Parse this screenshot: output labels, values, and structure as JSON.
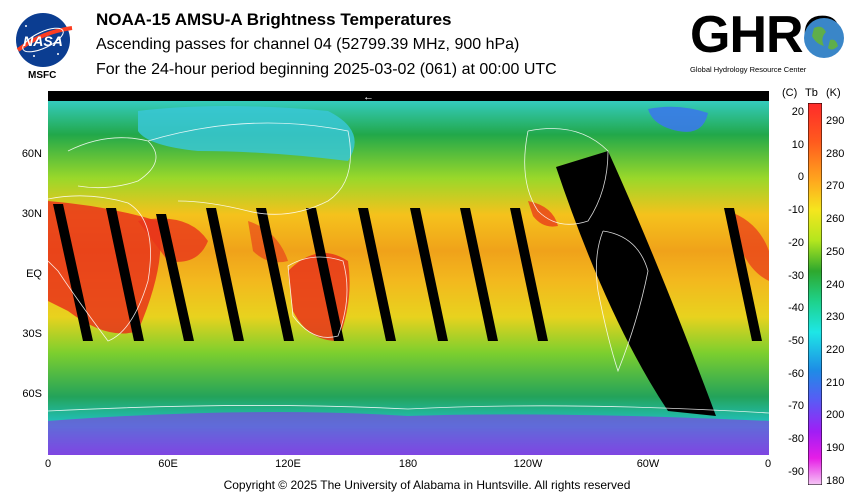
{
  "header": {
    "title": "NOAA-15 AMSU-A Brightness Temperatures",
    "subtitle1": "Ascending passes for channel 04 (52799.39 MHz, 900 hPa)",
    "subtitle2": "For the 24-hour period beginning 2025-03-02 (061) at 00:00 UTC"
  },
  "logos": {
    "nasa_text": "NASA",
    "msfc_text": "MSFC",
    "ghrc_text": "GHRC",
    "ghrc_subtitle": "Global Hydrology Resource Center"
  },
  "map": {
    "direction_arrow": "←",
    "lat_labels": [
      "60N",
      "30N",
      "EQ",
      "30S",
      "60S"
    ],
    "lon_labels": [
      "0",
      "60E",
      "120E",
      "180",
      "120W",
      "60W",
      "0"
    ]
  },
  "colorbar": {
    "units_c": "(C)",
    "units_tb": "Tb",
    "units_k": "(K)",
    "celsius_ticks": [
      "20",
      "10",
      "0",
      "-10",
      "-20",
      "-30",
      "-40",
      "-50",
      "-60",
      "-70",
      "-80",
      "-90"
    ],
    "kelvin_ticks": [
      "290",
      "280",
      "270",
      "260",
      "250",
      "240",
      "230",
      "220",
      "210",
      "200",
      "190",
      "180"
    ]
  },
  "footer": {
    "copyright": "Copyright © 2025 The University of Alabama in Huntsville.  All rights reserved"
  }
}
